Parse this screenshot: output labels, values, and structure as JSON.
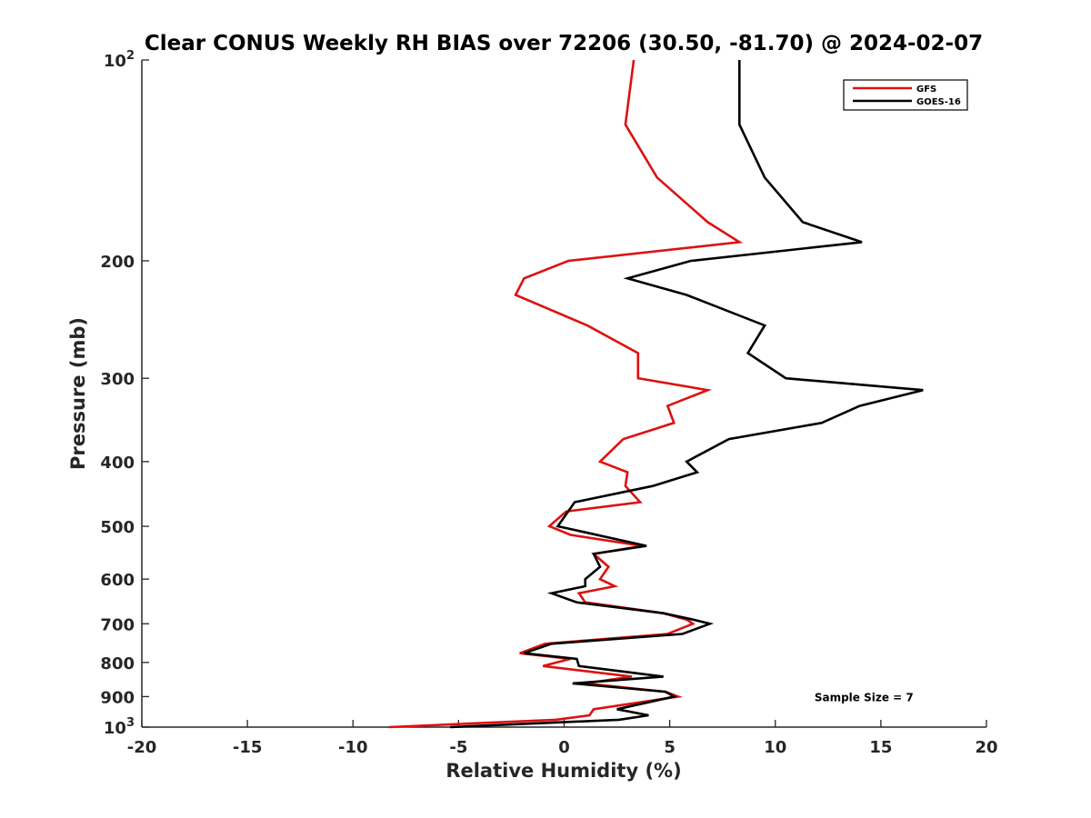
{
  "chart_data": {
    "type": "line",
    "title": "Clear CONUS Weekly RH BIAS over 72206 (30.50, -81.70) @ 2024-02-07",
    "xlabel": "Relative Humidity (%)",
    "ylabel": "Pressure (mb)",
    "xlim": [
      -20,
      20
    ],
    "ylim": [
      100,
      1000
    ],
    "y_scale": "log",
    "y_reversed": true,
    "grid": false,
    "legend_position": "top-right",
    "x_ticks": [
      -20,
      -15,
      -10,
      -5,
      0,
      5,
      10,
      15,
      20
    ],
    "x_tick_labels": [
      "-20",
      "-15",
      "-10",
      "-5",
      "0",
      "5",
      "10",
      "15",
      "20"
    ],
    "y_ticks": [
      {
        "value": 100,
        "base": "10",
        "exp": "2"
      },
      {
        "value": 200,
        "label": "200"
      },
      {
        "value": 300,
        "label": "300"
      },
      {
        "value": 400,
        "label": "400"
      },
      {
        "value": 500,
        "label": "500"
      },
      {
        "value": 600,
        "label": "600"
      },
      {
        "value": 700,
        "label": "700"
      },
      {
        "value": 800,
        "label": "800"
      },
      {
        "value": 900,
        "label": "900"
      },
      {
        "value": 1000,
        "base": "10",
        "exp": "3"
      }
    ],
    "series": [
      {
        "name": "GFS",
        "color": "#dd1111",
        "points": [
          [
            3.3,
            100
          ],
          [
            2.9,
            125
          ],
          [
            4.4,
            150
          ],
          [
            6.8,
            175
          ],
          [
            8.3,
            187.5
          ],
          [
            0.2,
            200
          ],
          [
            -1.9,
            212.5
          ],
          [
            -2.3,
            225
          ],
          [
            1.1,
            250
          ],
          [
            3.5,
            275
          ],
          [
            3.5,
            300
          ],
          [
            6.8,
            312.5
          ],
          [
            4.9,
            330
          ],
          [
            5.2,
            350
          ],
          [
            2.8,
            370
          ],
          [
            1.7,
            400
          ],
          [
            3.0,
            415
          ],
          [
            2.9,
            435
          ],
          [
            3.6,
            460
          ],
          [
            0.1,
            475
          ],
          [
            -0.7,
            500
          ],
          [
            0.3,
            515
          ],
          [
            3.7,
            535
          ],
          [
            1.4,
            550
          ],
          [
            2.1,
            575
          ],
          [
            1.7,
            600
          ],
          [
            2.4,
            615
          ],
          [
            0.7,
            630
          ],
          [
            1.0,
            650
          ],
          [
            4.7,
            675
          ],
          [
            5.8,
            690
          ],
          [
            6.1,
            700
          ],
          [
            4.9,
            725
          ],
          [
            -0.9,
            750
          ],
          [
            -2.1,
            775
          ],
          [
            0.3,
            790
          ],
          [
            -1.0,
            810
          ],
          [
            3.2,
            840
          ],
          [
            1.0,
            860
          ],
          [
            4.8,
            885
          ],
          [
            5.4,
            900
          ],
          [
            1.4,
            940
          ],
          [
            1.2,
            960
          ],
          [
            -0.4,
            975
          ],
          [
            -8.3,
            1000
          ]
        ]
      },
      {
        "name": "GOES-16",
        "color": "#000000",
        "points": [
          [
            8.3,
            100
          ],
          [
            8.3,
            125
          ],
          [
            9.5,
            150
          ],
          [
            11.3,
            175
          ],
          [
            14.1,
            187.5
          ],
          [
            6.0,
            200
          ],
          [
            3.0,
            212.5
          ],
          [
            5.8,
            225
          ],
          [
            9.5,
            250
          ],
          [
            8.7,
            275
          ],
          [
            10.5,
            300
          ],
          [
            17.0,
            312.5
          ],
          [
            14.0,
            330
          ],
          [
            12.2,
            350
          ],
          [
            7.8,
            370
          ],
          [
            5.8,
            400
          ],
          [
            6.3,
            415
          ],
          [
            4.2,
            435
          ],
          [
            0.5,
            460
          ],
          [
            -0.3,
            500
          ],
          [
            3.9,
            535
          ],
          [
            1.4,
            550
          ],
          [
            1.7,
            575
          ],
          [
            1.0,
            600
          ],
          [
            1.0,
            615
          ],
          [
            -0.6,
            630
          ],
          [
            0.6,
            650
          ],
          [
            4.7,
            675
          ],
          [
            6.1,
            690
          ],
          [
            6.9,
            700
          ],
          [
            5.6,
            725
          ],
          [
            -0.6,
            750
          ],
          [
            -1.9,
            775
          ],
          [
            0.6,
            790
          ],
          [
            0.7,
            810
          ],
          [
            4.7,
            840
          ],
          [
            0.4,
            860
          ],
          [
            4.8,
            885
          ],
          [
            5.2,
            900
          ],
          [
            2.5,
            940
          ],
          [
            4.0,
            960
          ],
          [
            2.6,
            975
          ],
          [
            -5.4,
            1000
          ]
        ]
      }
    ],
    "annotations": [
      {
        "text": "Sample Size = 7",
        "x": 14.2,
        "y": 900
      }
    ]
  }
}
